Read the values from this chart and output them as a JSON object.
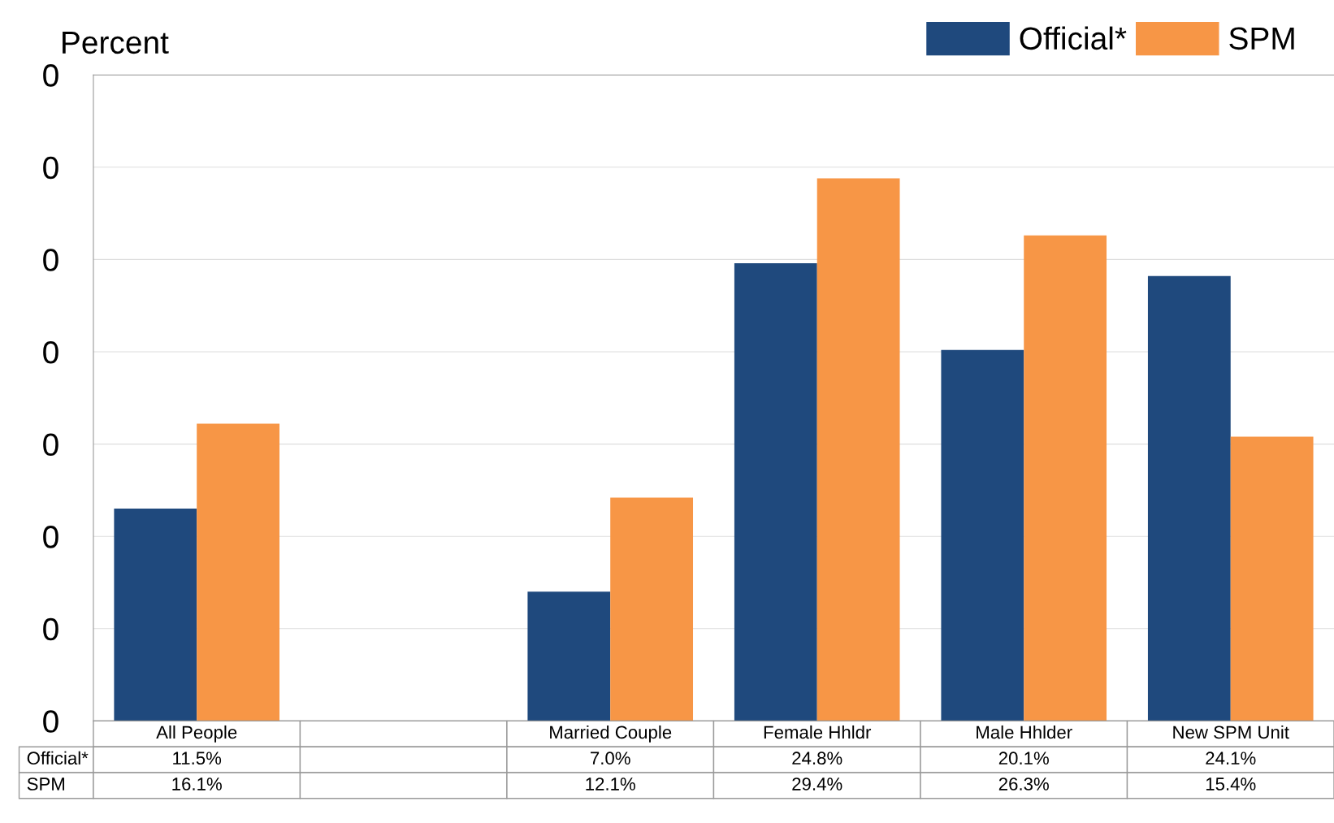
{
  "chart_data": {
    "type": "bar",
    "ylabel": "Percent",
    "categories": [
      "All People",
      null,
      "Married Couple",
      "Female Hhldr",
      "Male Hhlder",
      "New SPM Unit"
    ],
    "series": [
      {
        "name": "Official*",
        "color": "#1f497d",
        "values": [
          11.5,
          null,
          7.0,
          24.8,
          20.1,
          24.1
        ],
        "value_labels": [
          "11.5%",
          null,
          "7.0%",
          "24.8%",
          "20.1%",
          "24.1%"
        ]
      },
      {
        "name": "SPM",
        "color": "#f79646",
        "values": [
          16.1,
          null,
          12.1,
          29.4,
          26.3,
          15.4
        ],
        "value_labels": [
          "16.1%",
          null,
          "12.1%",
          "29.4%",
          "26.3%",
          "15.4%"
        ]
      }
    ],
    "ylim": [
      0,
      35
    ],
    "annotations": [
      "0",
      "0",
      "0",
      "0",
      "0",
      "0",
      "0",
      "0"
    ],
    "grid": "y",
    "legend": "top right"
  }
}
